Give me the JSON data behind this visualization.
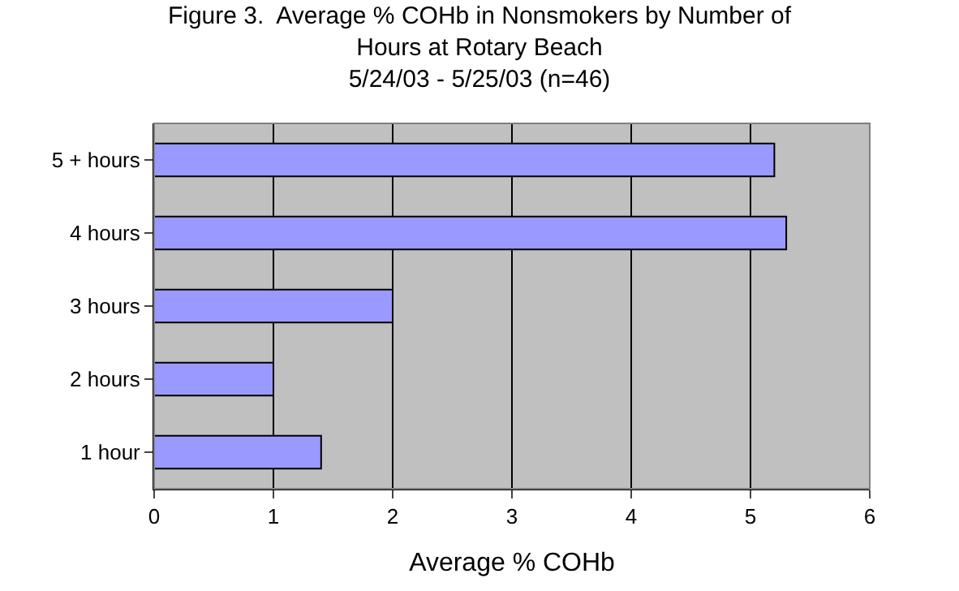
{
  "chart_data": {
    "type": "bar",
    "orientation": "horizontal",
    "title": "Figure 3.  Average % COHb in Nonsmokers by Number of\nHours at Rotary Beach\n5/24/03 - 5/25/03 (n=46)",
    "xlabel": "Average % COHb",
    "categories": [
      "5 + hours",
      "4 hours",
      "3 hours",
      "2 hours",
      "1 hour"
    ],
    "values": [
      5.2,
      5.3,
      2.0,
      1.0,
      1.4
    ],
    "color": "#9999ff",
    "xlim": [
      0,
      6
    ],
    "xticks": [
      0,
      1,
      2,
      3,
      4,
      5,
      6
    ],
    "grid": "x",
    "legend": false
  }
}
